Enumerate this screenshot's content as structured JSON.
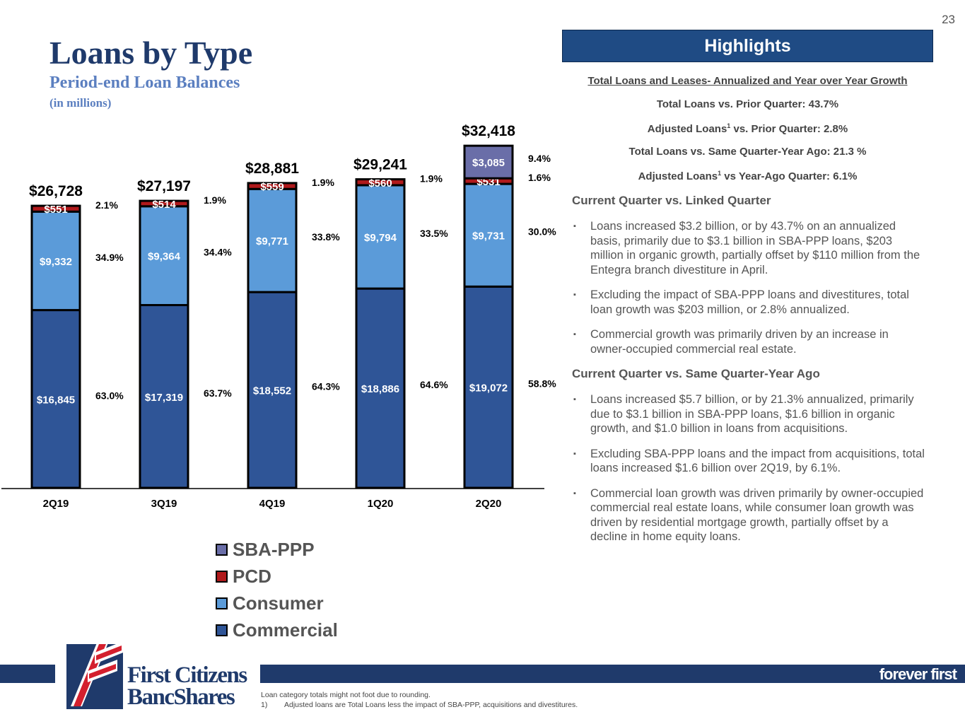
{
  "page_number": "23",
  "title": "Loans by Type",
  "subtitle": "Period-end Loan Balances",
  "units_note": "(in millions)",
  "colors": {
    "SBA-PPP": "#6a6ea8",
    "PCD": "#b0191b",
    "Consumer": "#5b9bd9",
    "Commercial": "#2f5597",
    "title": "#1f3a6b",
    "highlights_header": "#1f4b84"
  },
  "chart_data": {
    "type": "bar",
    "stacked": true,
    "categories": [
      "2Q19",
      "3Q19",
      "4Q19",
      "1Q20",
      "2Q20"
    ],
    "totals": [
      "$26,728",
      "$27,197",
      "$28,881",
      "$29,241",
      "$32,418"
    ],
    "total_values": [
      26728,
      27197,
      28881,
      29241,
      32418
    ],
    "series": [
      {
        "name": "Commercial",
        "values": [
          16845,
          17319,
          18552,
          18886,
          19072
        ],
        "labels": [
          "$16,845",
          "$17,319",
          "$18,552",
          "$18,886",
          "$19,072"
        ],
        "pct_labels": [
          "63.0%",
          "63.7%",
          "64.3%",
          "64.6%",
          "58.8%"
        ]
      },
      {
        "name": "Consumer",
        "values": [
          9332,
          9364,
          9771,
          9794,
          9731
        ],
        "labels": [
          "$9,332",
          "$9,364",
          "$9,771",
          "$9,794",
          "$9,731"
        ],
        "pct_labels": [
          "34.9%",
          "34.4%",
          "33.8%",
          "33.5%",
          "30.0%"
        ]
      },
      {
        "name": "PCD",
        "values": [
          551,
          514,
          559,
          560,
          531
        ],
        "labels": [
          "$551",
          "$514",
          "$559",
          "$560",
          "$531"
        ],
        "pct_labels": [
          "2.1%",
          "1.9%",
          "1.9%",
          "1.9%",
          "1.6%"
        ]
      },
      {
        "name": "SBA-PPP",
        "values": [
          0,
          0,
          0,
          0,
          3085
        ],
        "labels": [
          "",
          "",
          "",
          "",
          "$3,085"
        ],
        "pct_labels": [
          "",
          "",
          "",
          "",
          "9.4%"
        ]
      }
    ],
    "legend": [
      "SBA-PPP",
      "PCD",
      "Consumer",
      "Commercial"
    ],
    "legend_position": "bottom-left",
    "ylim": [
      0,
      33500
    ],
    "grid": false
  },
  "highlights": {
    "header": "Highlights",
    "subheading": "Total Loans and Leases- Annualized and Year over Year Growth",
    "lines": [
      {
        "before": "Total Loans vs. Prior Quarter: 43.7%",
        "sup": "",
        "after": ""
      },
      {
        "before": "Adjusted Loans",
        "sup": "1",
        "after": " vs. Prior Quarter: 2.8%"
      },
      {
        "before": "Total Loans vs. Same Quarter-Year Ago: 21.3 %",
        "sup": "",
        "after": ""
      },
      {
        "before": "Adjusted Loans",
        "sup": "1",
        "after": " vs Year-Ago Quarter: 6.1%"
      }
    ],
    "bullet_symbol": "▪",
    "sections": [
      {
        "heading": "Current Quarter vs. Linked Quarter",
        "bullets": [
          "Loans increased $3.2 billion, or by 43.7% on an annualized basis, primarily due to $3.1 billion in SBA-PPP loans, $203 million in organic growth, partially offset by $110 million from the Entegra branch divestiture in April.",
          "Excluding the impact of SBA-PPP loans and divestitures, total loan growth was $203 million, or 2.8% annualized.",
          "Commercial growth was primarily driven by an increase in owner-occupied commercial real estate."
        ]
      },
      {
        "heading": "Current Quarter vs. Same Quarter-Year Ago",
        "bullets": [
          "Loans increased $5.7 billion, or by 21.3% annualized, primarily due to $3.1 billion in SBA-PPP loans, $1.6 billion in organic growth, and $1.0 billion in loans from acquisitions.",
          "Excluding SBA-PPP loans and the impact from acquisitions, total loans increased $1.6 billion over 2Q19, by 6.1%.",
          "Commercial loan growth was driven primarily by owner-occupied commercial real estate loans, while consumer loan growth was driven by residential mortgage growth, partially offset by a decline in home equity loans."
        ]
      }
    ]
  },
  "footer": {
    "logo_line1": "First Citizens",
    "logo_line2": "BancShares",
    "tagline": "forever first",
    "footnote_rounding": "Loan category totals might not foot due to rounding.",
    "footnote_num": "1)",
    "footnote_text": "Adjusted loans are Total Loans less the impact of SBA-PPP, acquisitions and divestitures."
  }
}
